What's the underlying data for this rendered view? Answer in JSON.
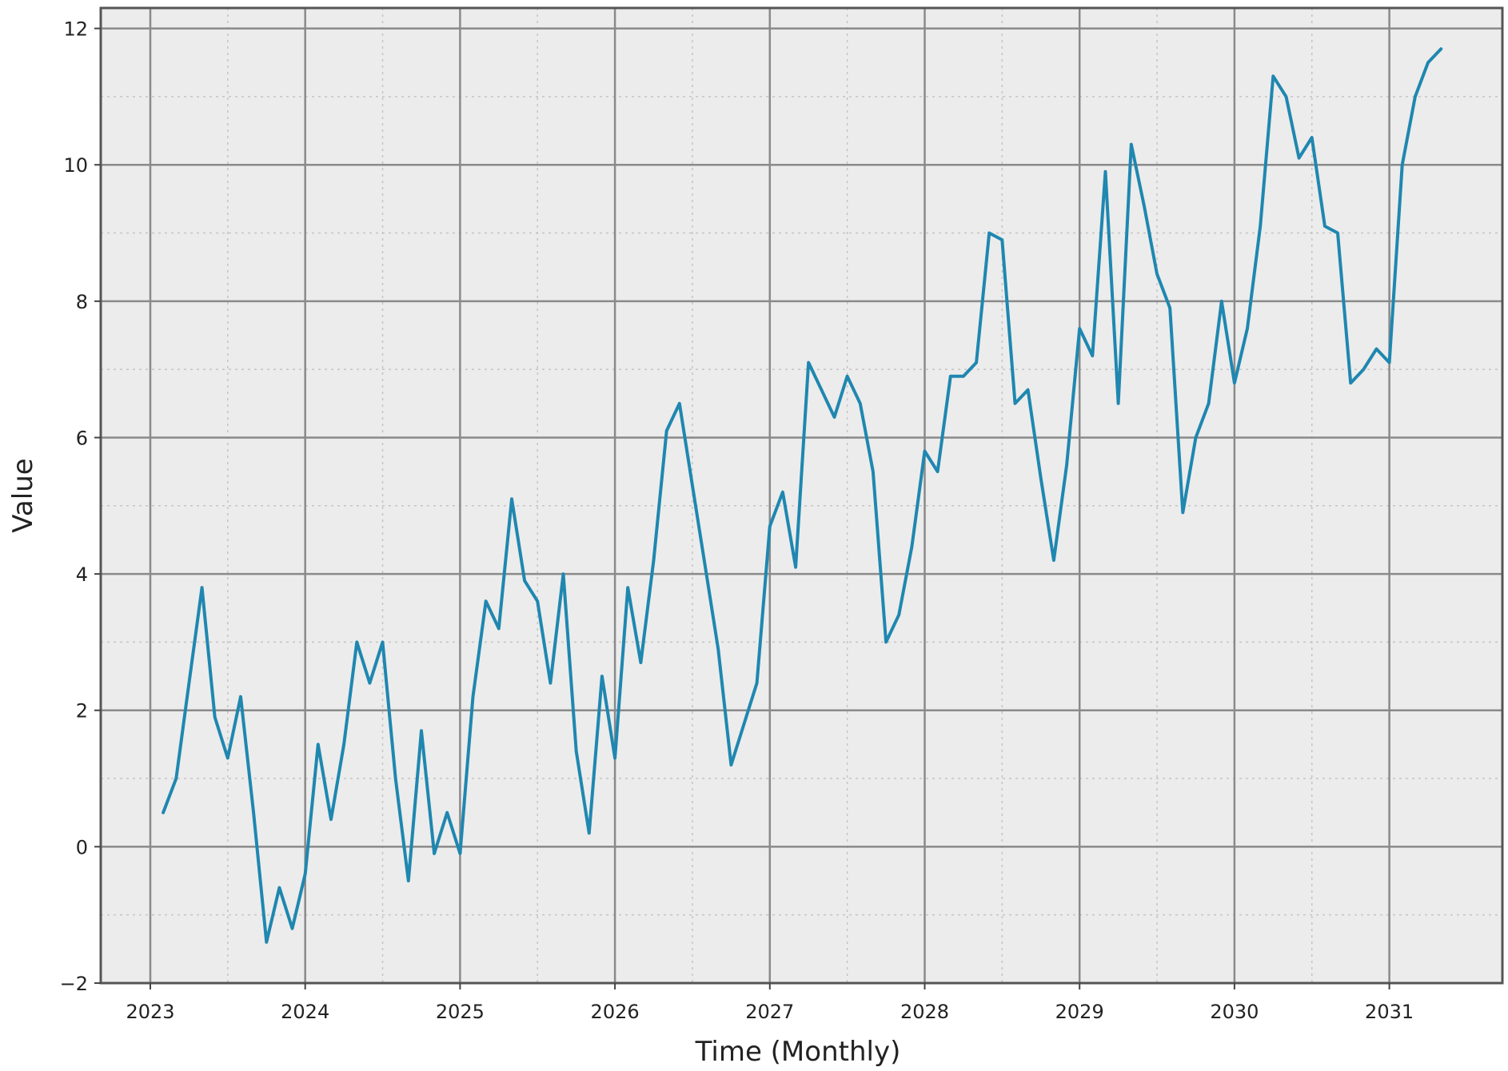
{
  "chart_data": {
    "type": "line",
    "title": "",
    "xlabel": "Time (Monthly)",
    "ylabel": "Value",
    "xlim": [
      2022.68,
      2031.73
    ],
    "ylim": [
      -2.0,
      12.3
    ],
    "grid": true,
    "legend": "none",
    "x_start": "2023-02",
    "x_step": "month",
    "xticks": [
      {
        "value": 2023,
        "label": "2023"
      },
      {
        "value": 2024,
        "label": "2024"
      },
      {
        "value": 2025,
        "label": "2025"
      },
      {
        "value": 2026,
        "label": "2026"
      },
      {
        "value": 2027,
        "label": "2027"
      },
      {
        "value": 2028,
        "label": "2028"
      },
      {
        "value": 2029,
        "label": "2029"
      },
      {
        "value": 2030,
        "label": "2030"
      },
      {
        "value": 2031,
        "label": "2031"
      }
    ],
    "yticks": [
      {
        "value": -2,
        "label": "−2"
      },
      {
        "value": 0,
        "label": "0"
      },
      {
        "value": 2,
        "label": "2"
      },
      {
        "value": 4,
        "label": "4"
      },
      {
        "value": 6,
        "label": "6"
      },
      {
        "value": 8,
        "label": "8"
      },
      {
        "value": 10,
        "label": "10"
      },
      {
        "value": 12,
        "label": "12"
      }
    ],
    "series": [
      {
        "name": "",
        "color": "#1f87b0",
        "values": [
          0.5,
          1.0,
          2.4,
          3.8,
          1.9,
          1.3,
          2.2,
          0.5,
          -1.4,
          -0.6,
          -1.2,
          -0.4,
          1.5,
          0.4,
          1.5,
          3.0,
          2.4,
          3.0,
          1.0,
          -0.5,
          1.7,
          -0.1,
          0.5,
          -0.1,
          2.2,
          3.6,
          3.2,
          5.1,
          3.9,
          3.6,
          2.4,
          4.0,
          1.4,
          0.2,
          2.5,
          1.3,
          3.8,
          2.7,
          4.2,
          6.1,
          6.5,
          5.3,
          4.1,
          2.9,
          1.2,
          1.8,
          2.4,
          4.7,
          5.2,
          4.1,
          7.1,
          6.7,
          6.3,
          6.9,
          6.5,
          5.5,
          3.0,
          3.4,
          4.4,
          5.8,
          5.5,
          6.9,
          6.9,
          7.1,
          9.0,
          8.9,
          6.5,
          6.7,
          5.4,
          4.2,
          5.6,
          7.6,
          7.2,
          9.9,
          6.5,
          10.3,
          9.4,
          8.4,
          7.9,
          4.9,
          6.0,
          6.5,
          8.0,
          6.8,
          7.6,
          9.1,
          11.3,
          11.0,
          10.1,
          10.4,
          9.1,
          9.0,
          6.8,
          7.0,
          7.3,
          7.1,
          10.0,
          11.0,
          11.5,
          11.7
        ]
      }
    ]
  }
}
